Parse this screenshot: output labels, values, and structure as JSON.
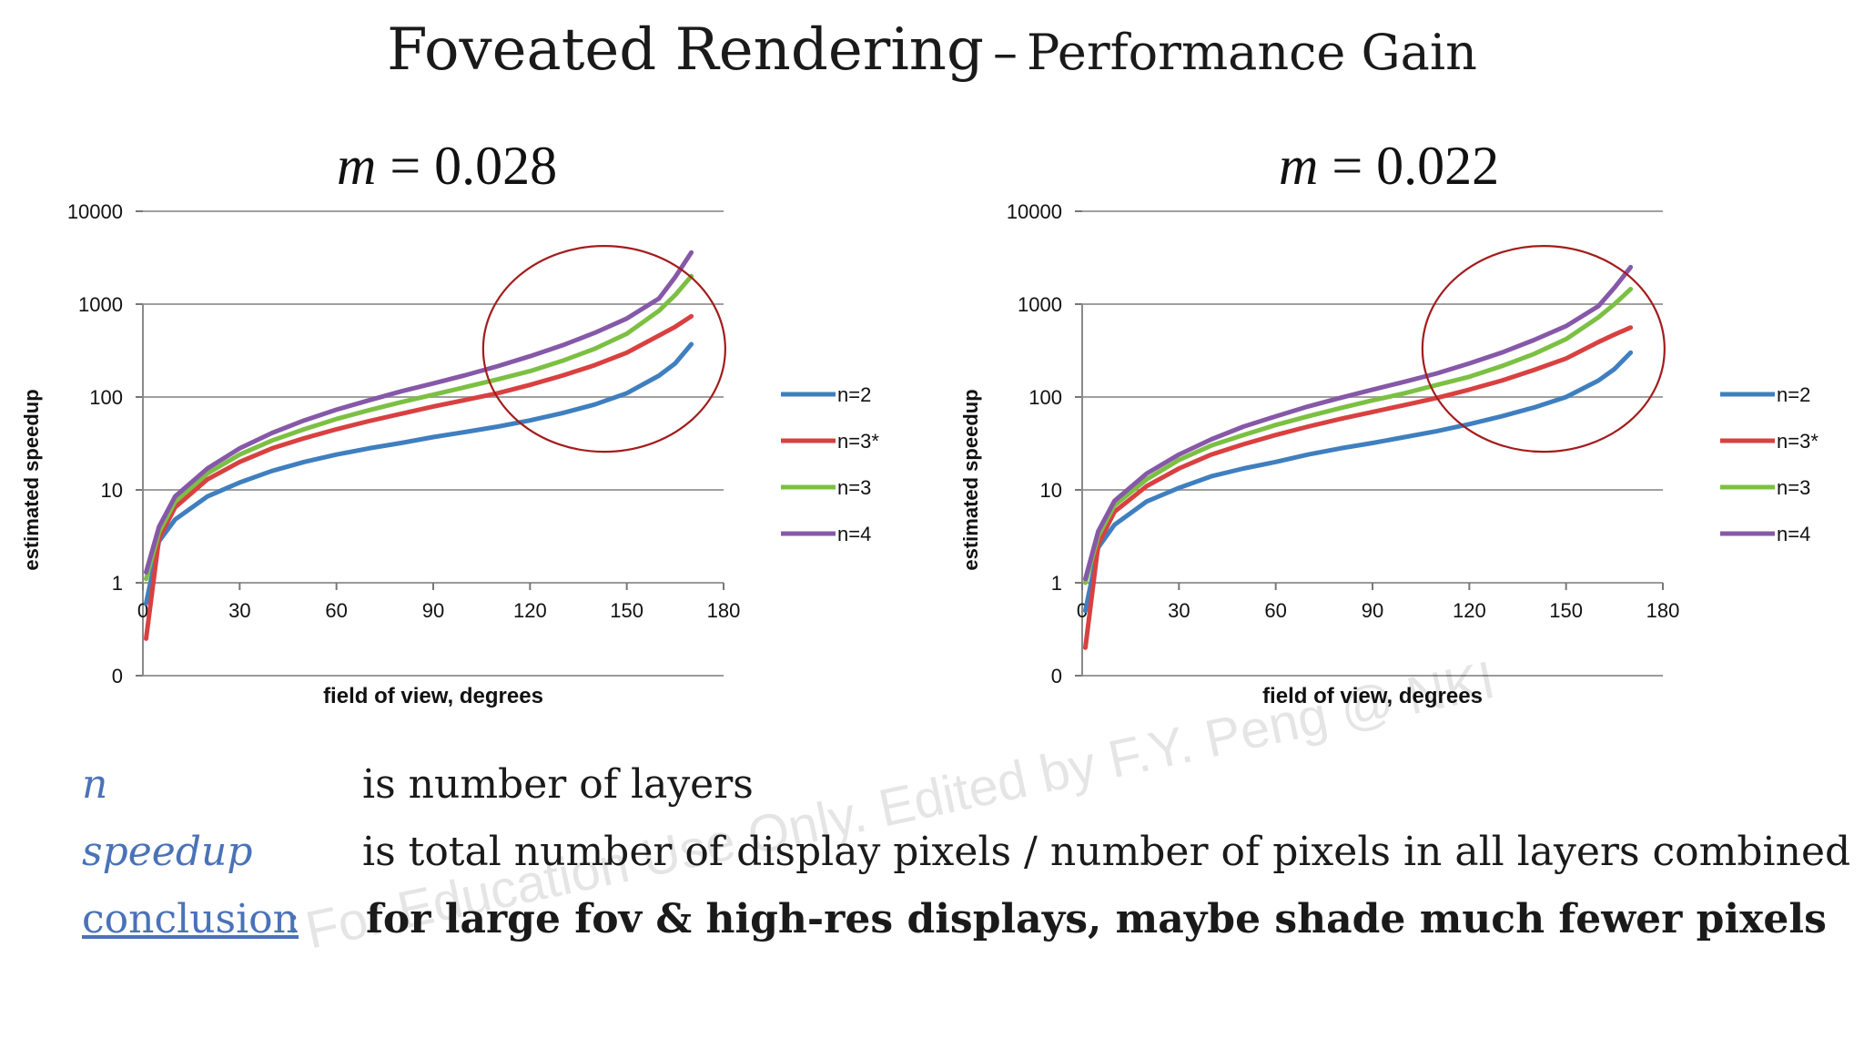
{
  "slide": {
    "title_main": "Foveated Rendering",
    "title_dash": "–",
    "title_sub": "Performance Gain"
  },
  "definitions": [
    {
      "term": "n",
      "text": "is number of layers"
    },
    {
      "term": "speedup",
      "text": "is total number of display pixels / number of pixels in all layers combined"
    },
    {
      "term": "conclusion",
      "term_suffix": ":",
      "text": "for large fov & high-res displays, maybe shade much fewer pixels"
    }
  ],
  "watermark": "For Education Use Only. Edited by F.Y. Peng @ NKI",
  "chart_data": [
    {
      "type": "line",
      "caption_var": "m",
      "caption_value": "= 0.028",
      "xlabel": "field of view, degrees",
      "ylabel": "estimated speedup",
      "x_ticks": [
        "0",
        "30",
        "60",
        "90",
        "120",
        "150",
        "180"
      ],
      "y_ticks": [
        "0",
        "1",
        "10",
        "100",
        "1000",
        "10000"
      ],
      "xlim": [
        0,
        180
      ],
      "y_scale": "log",
      "grid": true,
      "legend_position": "right",
      "annotation": "red ellipse around high-fov region",
      "series": [
        {
          "name": "n=2",
          "color": "#3f7fbf",
          "x": [
            1,
            5,
            10,
            20,
            30,
            40,
            50,
            60,
            70,
            80,
            90,
            100,
            110,
            120,
            130,
            140,
            150,
            160,
            165,
            170
          ],
          "y": [
            0.6,
            2.8,
            4.8,
            8.5,
            12,
            16,
            20,
            24,
            28,
            32,
            37,
            42,
            48,
            56,
            67,
            83,
            110,
            170,
            230,
            370
          ]
        },
        {
          "name": "n=3*",
          "color": "#d94040",
          "x": [
            1,
            5,
            10,
            20,
            30,
            40,
            50,
            60,
            70,
            80,
            90,
            100,
            110,
            120,
            130,
            140,
            150,
            160,
            165,
            170
          ],
          "y": [
            0.25,
            3,
            6.5,
            13,
            20,
            28,
            36,
            45,
            55,
            66,
            79,
            93,
            110,
            135,
            170,
            220,
            300,
            460,
            570,
            740
          ]
        },
        {
          "name": "n=3",
          "color": "#7cc043",
          "x": [
            1,
            5,
            10,
            20,
            30,
            40,
            50,
            60,
            70,
            80,
            90,
            100,
            110,
            120,
            130,
            140,
            150,
            160,
            165,
            170
          ],
          "y": [
            1.1,
            3.5,
            7.5,
            15,
            24,
            34,
            45,
            58,
            72,
            88,
            106,
            128,
            155,
            190,
            245,
            330,
            480,
            850,
            1250,
            2000
          ]
        },
        {
          "name": "n=4",
          "color": "#8658a8",
          "x": [
            1,
            5,
            10,
            20,
            30,
            40,
            50,
            60,
            70,
            80,
            90,
            100,
            110,
            120,
            130,
            140,
            150,
            160,
            165,
            170
          ],
          "y": [
            1.3,
            4,
            8.5,
            17,
            28,
            41,
            56,
            73,
            92,
            115,
            140,
            172,
            215,
            275,
            360,
            490,
            700,
            1150,
            1950,
            3600
          ]
        }
      ]
    },
    {
      "type": "line",
      "caption_var": "m",
      "caption_value": "= 0.022",
      "xlabel": "field of view, degrees",
      "ylabel": "estimated speedup",
      "x_ticks": [
        "0",
        "30",
        "60",
        "90",
        "120",
        "150",
        "180"
      ],
      "y_ticks": [
        "0",
        "1",
        "10",
        "100",
        "1000",
        "10000"
      ],
      "xlim": [
        0,
        180
      ],
      "y_scale": "log",
      "grid": true,
      "legend_position": "right",
      "annotation": "red ellipse around high-fov region",
      "series": [
        {
          "name": "n=2",
          "color": "#3f7fbf",
          "x": [
            1,
            5,
            10,
            20,
            30,
            40,
            50,
            60,
            70,
            80,
            90,
            100,
            110,
            120,
            130,
            140,
            150,
            160,
            165,
            170
          ],
          "y": [
            0.5,
            2.4,
            4.2,
            7.5,
            10.5,
            14,
            17,
            20,
            24,
            28,
            32,
            37,
            43,
            51,
            62,
            77,
            100,
            150,
            200,
            300
          ]
        },
        {
          "name": "n=3*",
          "color": "#d94040",
          "x": [
            1,
            5,
            10,
            20,
            30,
            40,
            50,
            60,
            70,
            80,
            90,
            100,
            110,
            120,
            130,
            140,
            150,
            160,
            165,
            170
          ],
          "y": [
            0.2,
            2.6,
            5.8,
            11,
            17,
            24,
            31,
            39,
            48,
            58,
            69,
            82,
            98,
            120,
            150,
            195,
            260,
            390,
            470,
            560
          ]
        },
        {
          "name": "n=3",
          "color": "#7cc043",
          "x": [
            1,
            5,
            10,
            20,
            30,
            40,
            50,
            60,
            70,
            80,
            90,
            100,
            110,
            120,
            130,
            140,
            150,
            160,
            165,
            170
          ],
          "y": [
            1,
            3.2,
            6.8,
            13,
            21,
            30,
            39,
            50,
            62,
            76,
            92,
            110,
            135,
            165,
            215,
            290,
            420,
            720,
            1000,
            1450
          ]
        },
        {
          "name": "n=4",
          "color": "#8658a8",
          "x": [
            1,
            5,
            10,
            20,
            30,
            40,
            50,
            60,
            70,
            80,
            90,
            100,
            110,
            120,
            130,
            140,
            150,
            160,
            165,
            170
          ],
          "y": [
            1.1,
            3.6,
            7.6,
            15,
            24,
            35,
            48,
            62,
            79,
            98,
            120,
            146,
            180,
            230,
            300,
            410,
            580,
            950,
            1500,
            2500
          ]
        }
      ]
    }
  ]
}
